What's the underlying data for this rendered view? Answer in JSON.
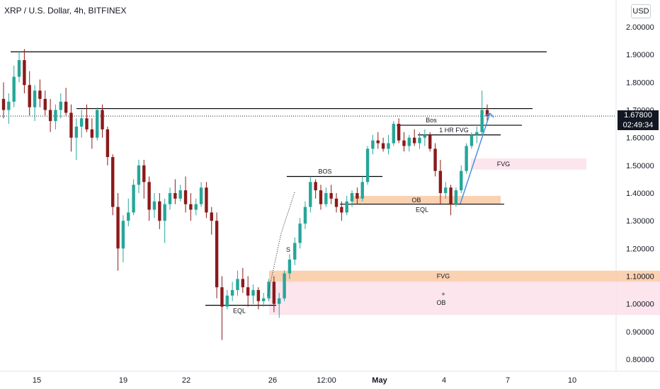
{
  "header": {
    "title": "XRP / U.S. Dollar, 4h, BITFINEX",
    "currency": "USD"
  },
  "last_price": {
    "value": "1.67800",
    "countdown": "02:49:34"
  },
  "colors": {
    "up": "#26a69a",
    "down": "#8b1a1a",
    "fvg_orange": "#f9c9a3",
    "fvg_pink": "#fbe0ea",
    "arrow": "#4a90e2",
    "line": "#000000"
  },
  "chart_data": {
    "type": "candlestick",
    "title": "XRP / U.S. Dollar, 4h, BITFINEX",
    "ylim": [
      0.75,
      2.05
    ],
    "y_ticks": [
      2.0,
      1.9,
      1.8,
      1.7,
      1.6,
      1.5,
      1.4,
      1.3,
      1.2,
      1.1,
      1.0,
      0.9,
      0.8
    ],
    "y_tick_labels": [
      "2.00000",
      "1.90000",
      "1.80000",
      "1.70000",
      "1.60000",
      "1.50000",
      "1.40000",
      "1.30000",
      "1.20000",
      "1.10000",
      "1.00000",
      "0.90000",
      "0.80000"
    ],
    "x_tick_labels": [
      "15",
      "19",
      "22",
      "26",
      "12:00",
      "May",
      "4",
      "7",
      "10"
    ],
    "current_price": 1.678,
    "candles_ohlc": [
      [
        1.74,
        1.8,
        1.67,
        1.7
      ],
      [
        1.7,
        1.76,
        1.65,
        1.73
      ],
      [
        1.73,
        1.86,
        1.71,
        1.82
      ],
      [
        1.82,
        1.91,
        1.8,
        1.88
      ],
      [
        1.88,
        1.92,
        1.76,
        1.79
      ],
      [
        1.79,
        1.84,
        1.68,
        1.71
      ],
      [
        1.71,
        1.79,
        1.66,
        1.77
      ],
      [
        1.77,
        1.81,
        1.71,
        1.74
      ],
      [
        1.74,
        1.77,
        1.68,
        1.7
      ],
      [
        1.7,
        1.74,
        1.62,
        1.66
      ],
      [
        1.66,
        1.72,
        1.63,
        1.7
      ],
      [
        1.7,
        1.76,
        1.67,
        1.73
      ],
      [
        1.73,
        1.78,
        1.68,
        1.69
      ],
      [
        1.69,
        1.72,
        1.55,
        1.6
      ],
      [
        1.6,
        1.67,
        1.52,
        1.64
      ],
      [
        1.64,
        1.7,
        1.6,
        1.67
      ],
      [
        1.67,
        1.72,
        1.62,
        1.63
      ],
      [
        1.63,
        1.67,
        1.56,
        1.6
      ],
      [
        1.6,
        1.71,
        1.59,
        1.7
      ],
      [
        1.7,
        1.72,
        1.6,
        1.63
      ],
      [
        1.63,
        1.64,
        1.5,
        1.53
      ],
      [
        1.53,
        1.54,
        1.32,
        1.35
      ],
      [
        1.35,
        1.4,
        1.12,
        1.2
      ],
      [
        1.2,
        1.32,
        1.15,
        1.3
      ],
      [
        1.3,
        1.38,
        1.28,
        1.33
      ],
      [
        1.33,
        1.45,
        1.32,
        1.43
      ],
      [
        1.43,
        1.52,
        1.4,
        1.5
      ],
      [
        1.5,
        1.52,
        1.38,
        1.44
      ],
      [
        1.44,
        1.46,
        1.3,
        1.34
      ],
      [
        1.34,
        1.4,
        1.31,
        1.37
      ],
      [
        1.37,
        1.4,
        1.27,
        1.3
      ],
      [
        1.3,
        1.38,
        1.22,
        1.36
      ],
      [
        1.36,
        1.42,
        1.34,
        1.4
      ],
      [
        1.4,
        1.45,
        1.36,
        1.38
      ],
      [
        1.38,
        1.43,
        1.37,
        1.41
      ],
      [
        1.41,
        1.46,
        1.33,
        1.36
      ],
      [
        1.36,
        1.4,
        1.3,
        1.34
      ],
      [
        1.34,
        1.38,
        1.32,
        1.36
      ],
      [
        1.36,
        1.44,
        1.35,
        1.42
      ],
      [
        1.42,
        1.44,
        1.31,
        1.33
      ],
      [
        1.33,
        1.35,
        1.25,
        1.3
      ],
      [
        1.3,
        1.33,
        1.02,
        1.06
      ],
      [
        1.06,
        1.1,
        0.87,
        0.99
      ],
      [
        0.99,
        1.05,
        0.98,
        1.03
      ],
      [
        1.03,
        1.08,
        1.01,
        1.05
      ],
      [
        1.05,
        1.12,
        1.03,
        1.09
      ],
      [
        1.09,
        1.13,
        1.04,
        1.06
      ],
      [
        1.06,
        1.1,
        0.99,
        1.03
      ],
      [
        1.03,
        1.07,
        1.0,
        1.05
      ],
      [
        1.05,
        1.06,
        0.98,
        1.01
      ],
      [
        1.01,
        1.04,
        0.99,
        1.02
      ],
      [
        1.02,
        1.09,
        1.01,
        1.08
      ],
      [
        1.08,
        1.1,
        0.97,
        1.0
      ],
      [
        1.0,
        1.04,
        0.95,
        1.02
      ],
      [
        1.02,
        1.12,
        1.01,
        1.11
      ],
      [
        1.11,
        1.18,
        1.09,
        1.16
      ],
      [
        1.16,
        1.24,
        1.14,
        1.22
      ],
      [
        1.22,
        1.31,
        1.2,
        1.29
      ],
      [
        1.29,
        1.37,
        1.27,
        1.35
      ],
      [
        1.35,
        1.46,
        1.33,
        1.44
      ],
      [
        1.44,
        1.45,
        1.38,
        1.41
      ],
      [
        1.41,
        1.43,
        1.34,
        1.36
      ],
      [
        1.36,
        1.42,
        1.35,
        1.4
      ],
      [
        1.4,
        1.43,
        1.36,
        1.38
      ],
      [
        1.38,
        1.4,
        1.33,
        1.35
      ],
      [
        1.35,
        1.37,
        1.3,
        1.33
      ],
      [
        1.33,
        1.39,
        1.32,
        1.37
      ],
      [
        1.37,
        1.41,
        1.35,
        1.4
      ],
      [
        1.4,
        1.42,
        1.36,
        1.38
      ],
      [
        1.38,
        1.46,
        1.37,
        1.44
      ],
      [
        1.44,
        1.57,
        1.43,
        1.56
      ],
      [
        1.56,
        1.61,
        1.54,
        1.59
      ],
      [
        1.59,
        1.62,
        1.56,
        1.58
      ],
      [
        1.58,
        1.6,
        1.55,
        1.56
      ],
      [
        1.56,
        1.61,
        1.54,
        1.58
      ],
      [
        1.58,
        1.66,
        1.57,
        1.65
      ],
      [
        1.65,
        1.67,
        1.58,
        1.59
      ],
      [
        1.59,
        1.62,
        1.55,
        1.57
      ],
      [
        1.57,
        1.61,
        1.55,
        1.6
      ],
      [
        1.6,
        1.63,
        1.57,
        1.58
      ],
      [
        1.58,
        1.62,
        1.56,
        1.6
      ],
      [
        1.6,
        1.63,
        1.57,
        1.61
      ],
      [
        1.61,
        1.62,
        1.55,
        1.56
      ],
      [
        1.56,
        1.58,
        1.46,
        1.48
      ],
      [
        1.48,
        1.52,
        1.36,
        1.4
      ],
      [
        1.4,
        1.44,
        1.38,
        1.42
      ],
      [
        1.42,
        1.43,
        1.32,
        1.36
      ],
      [
        1.36,
        1.42,
        1.35,
        1.41
      ],
      [
        1.41,
        1.5,
        1.4,
        1.48
      ],
      [
        1.48,
        1.58,
        1.47,
        1.57
      ],
      [
        1.57,
        1.62,
        1.56,
        1.61
      ],
      [
        1.61,
        1.64,
        1.58,
        1.62
      ],
      [
        1.62,
        1.77,
        1.61,
        1.7
      ],
      [
        1.7,
        1.72,
        1.66,
        1.678
      ]
    ],
    "horizontal_lines": [
      {
        "price": 1.91,
        "label": ""
      },
      {
        "price": 1.705,
        "label": ""
      },
      {
        "price": 1.645,
        "label": "Bos"
      },
      {
        "price": 1.61,
        "label": "1 HR FVG"
      },
      {
        "price": 1.46,
        "label": "BOS"
      },
      {
        "price": 1.36,
        "label": "EQL"
      },
      {
        "price": 0.995,
        "label": "EQL"
      }
    ],
    "zones": [
      {
        "label": "FVG",
        "top": 1.525,
        "bottom": 1.485,
        "color": "pink"
      },
      {
        "label": "OB",
        "top": 1.39,
        "bottom": 1.36,
        "color": "orange"
      },
      {
        "label": "FVG",
        "top": 1.12,
        "bottom": 1.08,
        "color": "orange"
      },
      {
        "label": "+",
        "top": 1.08,
        "bottom": 0.96,
        "color": "pink"
      },
      {
        "label": "OB",
        "top": 1.08,
        "bottom": 0.96,
        "color": "pink"
      }
    ],
    "annotations": [
      "S"
    ]
  }
}
